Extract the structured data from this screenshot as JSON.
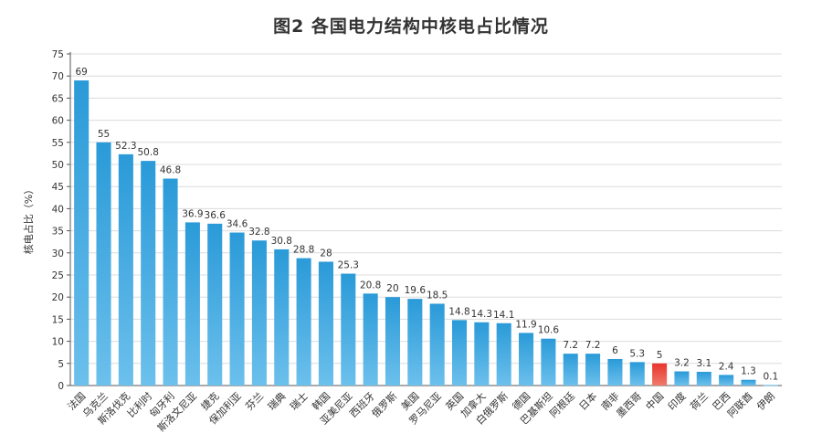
{
  "title": "图2 各国电力结构中核电占比情况",
  "chart_data": {
    "type": "bar",
    "title": "图2 各国电力结构中核电占比情况",
    "xlabel": "",
    "ylabel": "核电占比（%）",
    "ylim": [
      0,
      75
    ],
    "yticks": [
      0,
      5,
      10,
      15,
      20,
      25,
      30,
      35,
      40,
      45,
      50,
      55,
      60,
      65,
      70,
      75
    ],
    "grid": true,
    "categories": [
      "法国",
      "乌克兰",
      "斯洛伐克",
      "比利时",
      "匈牙利",
      "斯洛文尼亚",
      "捷克",
      "保加利亚",
      "芬兰",
      "瑞典",
      "瑞士",
      "韩国",
      "亚美尼亚",
      "西班牙",
      "俄罗斯",
      "美国",
      "罗马尼亚",
      "英国",
      "加拿大",
      "白俄罗斯",
      "德国",
      "巴基斯坦",
      "阿根廷",
      "日本",
      "南非",
      "墨西哥",
      "中国",
      "印度",
      "荷兰",
      "巴西",
      "阿联酋",
      "伊朗"
    ],
    "values": [
      69,
      55,
      52.3,
      50.8,
      46.8,
      36.9,
      36.6,
      34.6,
      32.8,
      30.8,
      28.8,
      28,
      25.3,
      20.8,
      20,
      19.6,
      18.5,
      14.8,
      14.3,
      14.1,
      11.9,
      10.6,
      7.2,
      7.2,
      6,
      5.3,
      5,
      3.2,
      3.1,
      2.4,
      1.3,
      0.1
    ],
    "data_labels": [
      "69",
      "55",
      "52.3",
      "50.8",
      "46.8",
      "36.9",
      "36.6",
      "34.6",
      "32.8",
      "30.8",
      "28.8",
      "28",
      "25.3",
      "20.8",
      "20",
      "19.6",
      "18.5",
      "14.8",
      "14.3",
      "14.1",
      "11.9",
      "10.6",
      "7.2",
      "7.2",
      "6",
      "5.3",
      "5",
      "3.2",
      "3.1",
      "2.4",
      "1.3",
      "0.1"
    ],
    "highlight_category": "中国",
    "colors": {
      "bar": "#2a9ad8",
      "bar_light": "#6cc0ec",
      "highlight": "#e8352c",
      "highlight_light": "#f07a6c",
      "grid": "#dcdcdc",
      "axis": "#555555"
    }
  }
}
